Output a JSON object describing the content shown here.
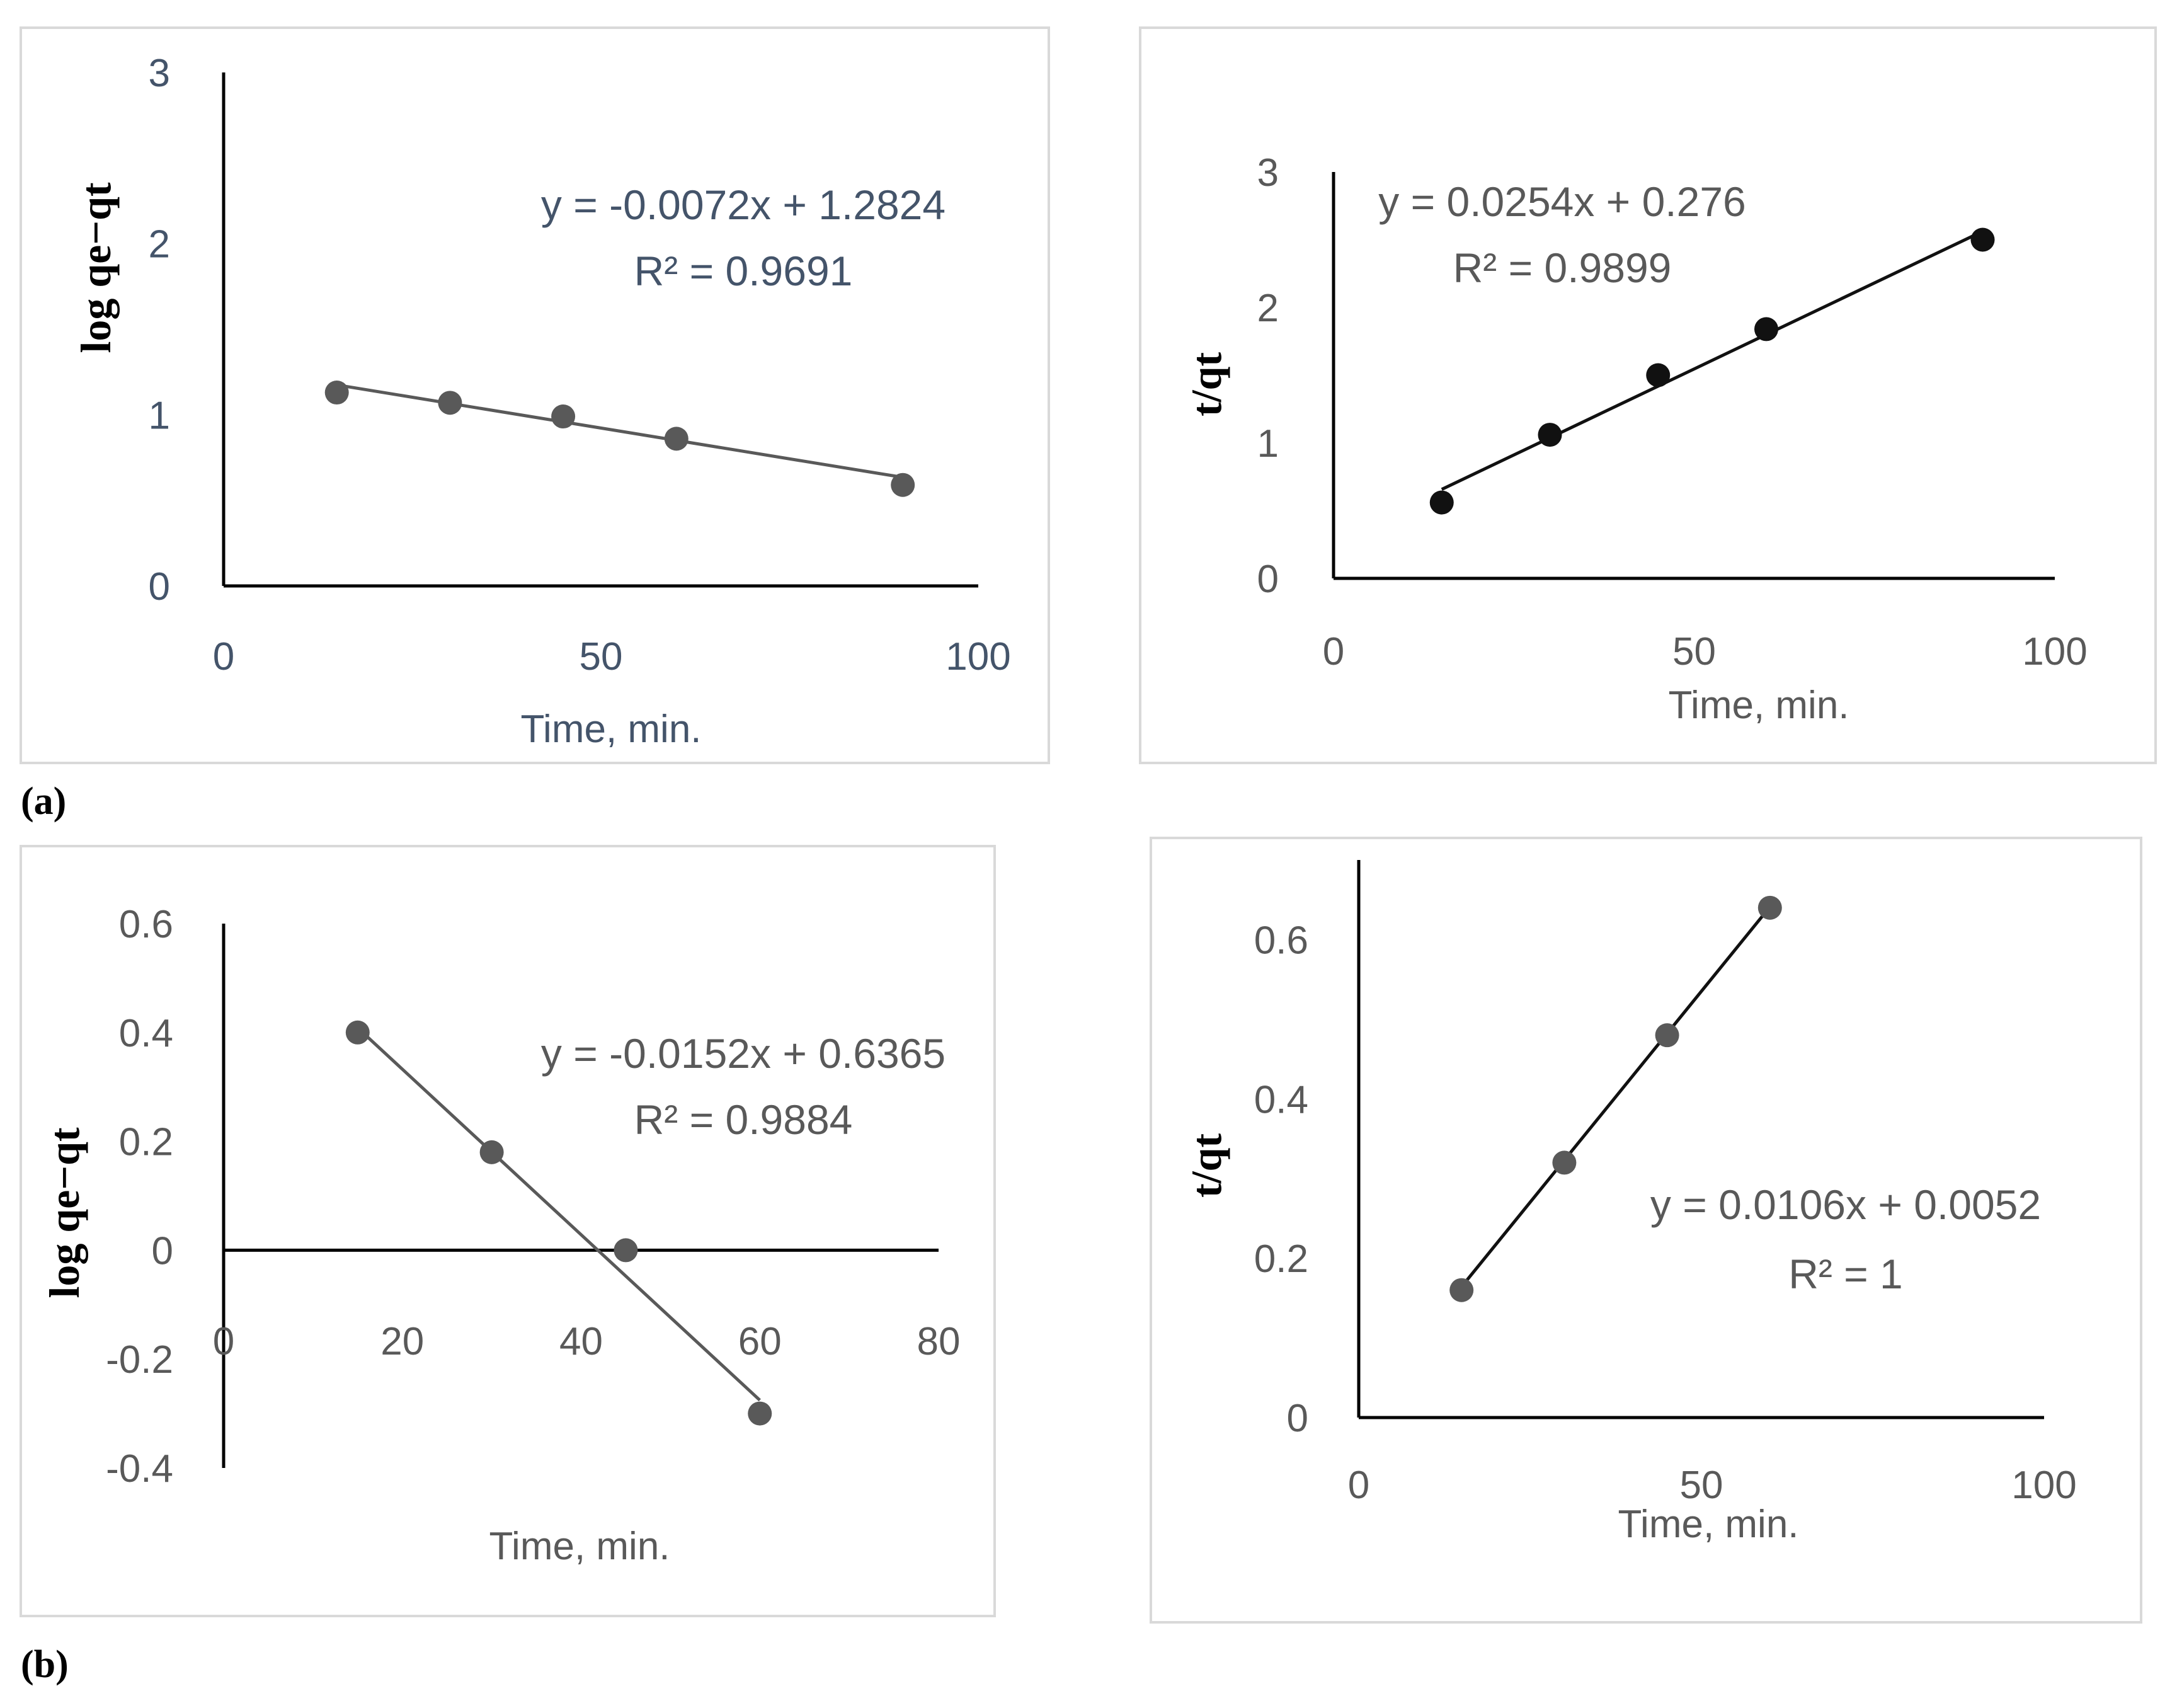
{
  "panel_labels": [
    "(a)",
    "(b)"
  ],
  "chart_data": [
    {
      "type": "scatter",
      "panel": "(a)",
      "xlabel": "Time, min.",
      "ylabel": "log qe−qt",
      "xlim": [
        0,
        100
      ],
      "ylim": [
        0,
        3
      ],
      "xticks": [
        0,
        50,
        100
      ],
      "yticks": [
        0,
        1,
        2,
        3
      ],
      "x": [
        15,
        30,
        45,
        60,
        90
      ],
      "y": [
        1.13,
        1.07,
        0.99,
        0.86,
        0.59
      ],
      "trendline": {
        "slope": -0.0072,
        "intercept": 1.2824,
        "x_range": [
          15,
          90
        ]
      },
      "equation": "y = -0.0072x + 1.2824",
      "r2_text": "R² = 0.9691",
      "colors": {
        "marker": "#595959",
        "line": "#595959",
        "text": "#44546a"
      }
    },
    {
      "type": "scatter",
      "panel": "(a)",
      "xlabel": "Time, min.",
      "ylabel": "t/qt",
      "xlim": [
        0,
        100
      ],
      "ylim": [
        0,
        3
      ],
      "xticks": [
        0,
        50,
        100
      ],
      "yticks": [
        0,
        1,
        2,
        3
      ],
      "x": [
        15,
        30,
        45,
        60,
        90
      ],
      "y": [
        0.56,
        1.06,
        1.5,
        1.84,
        2.5
      ],
      "trendline": {
        "slope": 0.0254,
        "intercept": 0.276,
        "x_range": [
          15,
          90
        ]
      },
      "equation": "y = 0.0254x + 0.276",
      "r2_text": "R² = 0.9899",
      "colors": {
        "marker": "#111111",
        "line": "#111111",
        "text": "#595959"
      }
    },
    {
      "type": "scatter",
      "panel": "(b)",
      "xlabel": "Time, min.",
      "ylabel": "log qe−qt",
      "xlim": [
        0,
        80
      ],
      "ylim": [
        -0.4,
        0.6
      ],
      "xticks": [
        0,
        20,
        40,
        60,
        80
      ],
      "yticks": [
        -0.4,
        -0.2,
        0,
        0.2,
        0.4,
        0.6
      ],
      "ytick_labels": [
        "-0.4",
        "-0.2",
        "0",
        "0.2",
        "0.4",
        "0.6"
      ],
      "x": [
        15,
        30,
        45,
        60
      ],
      "y": [
        0.4,
        0.18,
        0.0,
        -0.3
      ],
      "trendline": {
        "slope": -0.0152,
        "intercept": 0.6365,
        "x_range": [
          15,
          60
        ]
      },
      "equation": "y = -0.0152x + 0.6365",
      "r2_text": "R² = 0.9884",
      "colors": {
        "marker": "#595959",
        "line": "#595959",
        "text": "#595959"
      }
    },
    {
      "type": "scatter",
      "panel": "(b)",
      "xlabel": "Time, min.",
      "ylabel": "t/qt",
      "xlim": [
        0,
        100
      ],
      "ylim": [
        0,
        0.7
      ],
      "xticks": [
        0,
        50,
        100
      ],
      "yticks": [
        0,
        0.2,
        0.4,
        0.6
      ],
      "ytick_labels": [
        "0",
        "0.2",
        "0.4",
        "0.6"
      ],
      "x": [
        15,
        30,
        45,
        60
      ],
      "y": [
        0.16,
        0.32,
        0.48,
        0.64
      ],
      "trendline": {
        "slope": 0.0106,
        "intercept": 0.0052,
        "x_range": [
          15,
          60
        ]
      },
      "equation": "y = 0.0106x + 0.0052",
      "r2_text": "R² = 1",
      "colors": {
        "marker": "#595959",
        "line": "#111111",
        "text": "#595959"
      }
    }
  ]
}
